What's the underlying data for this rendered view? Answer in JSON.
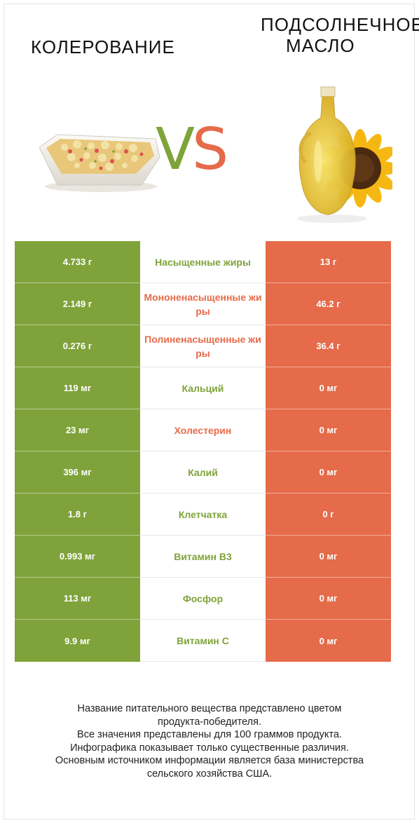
{
  "header": {
    "left_title": "КОЛЕРОВАНИЕ",
    "right_title_line1": "ПОДСОЛНЕЧНОЕ",
    "right_title_line2": "МАСЛО",
    "vs_v": "V",
    "vs_s": "S"
  },
  "colors": {
    "green": "#7fa33a",
    "red": "#e56b4a"
  },
  "icons": {
    "left": "baked-casserole-dish-image",
    "right": "sunflower-oil-bottle-image"
  },
  "rows": [
    {
      "left": "4.733 г",
      "nutrient": "Насыщенные жиры",
      "right": "13 г",
      "winner": "green"
    },
    {
      "left": "2.149 г",
      "nutrient": "Мононенасыщенные жиры",
      "right": "46.2 г",
      "winner": "red"
    },
    {
      "left": "0.276 г",
      "nutrient": "Полиненасыщенные жиры",
      "right": "36.4 г",
      "winner": "red"
    },
    {
      "left": "119 мг",
      "nutrient": "Кальций",
      "right": "0 мг",
      "winner": "green"
    },
    {
      "left": "23 мг",
      "nutrient": "Холестерин",
      "right": "0 мг",
      "winner": "red"
    },
    {
      "left": "396 мг",
      "nutrient": "Калий",
      "right": "0 мг",
      "winner": "green"
    },
    {
      "left": "1.8 г",
      "nutrient": "Клетчатка",
      "right": "0 г",
      "winner": "green"
    },
    {
      "left": "0.993 мг",
      "nutrient": "Витамин B3",
      "right": "0 мг",
      "winner": "green"
    },
    {
      "left": "113 мг",
      "nutrient": "Фосфор",
      "right": "0 мг",
      "winner": "green"
    },
    {
      "left": "9.9 мг",
      "nutrient": "Витамин C",
      "right": "0 мг",
      "winner": "green"
    }
  ],
  "footer": {
    "line1": "Название питательного вещества представлено цветом",
    "line2": "продукта-победителя.",
    "line3": "Все значения представлены для 100 граммов продукта.",
    "line4": "Инфографика показывает только существенные различия.",
    "line5": "Основным источником информации является база министерства",
    "line6": "сельского хозяйства США."
  }
}
